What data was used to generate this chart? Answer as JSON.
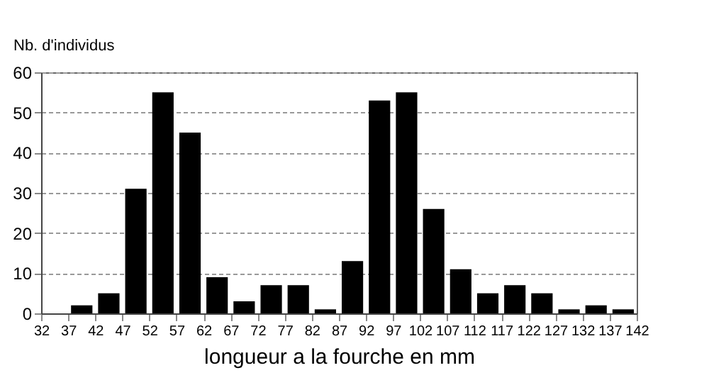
{
  "chart_data": {
    "type": "histogram",
    "xlabel": "longueur a la fourche en mm",
    "ylabel": "Nb. d'individus",
    "bins": [
      32,
      37,
      42,
      47,
      52,
      57,
      62,
      67,
      72,
      77,
      82,
      87,
      92,
      97,
      102,
      107,
      112,
      117,
      122,
      127,
      132,
      137,
      142
    ],
    "values": [
      0,
      2,
      5,
      31,
      55,
      45,
      9,
      3,
      7,
      7,
      1,
      13,
      53,
      55,
      26,
      11,
      5,
      7,
      5,
      1,
      2,
      1
    ],
    "color": "#000000",
    "xlim": [
      32,
      142
    ],
    "xticks": [
      32,
      37,
      42,
      47,
      52,
      57,
      62,
      67,
      72,
      77,
      82,
      87,
      92,
      97,
      102,
      107,
      112,
      117,
      122,
      127,
      132,
      137,
      142
    ],
    "ylim": [
      0,
      60
    ],
    "yticks": [
      0,
      10,
      20,
      30,
      40,
      50,
      60
    ],
    "grid": "y"
  }
}
